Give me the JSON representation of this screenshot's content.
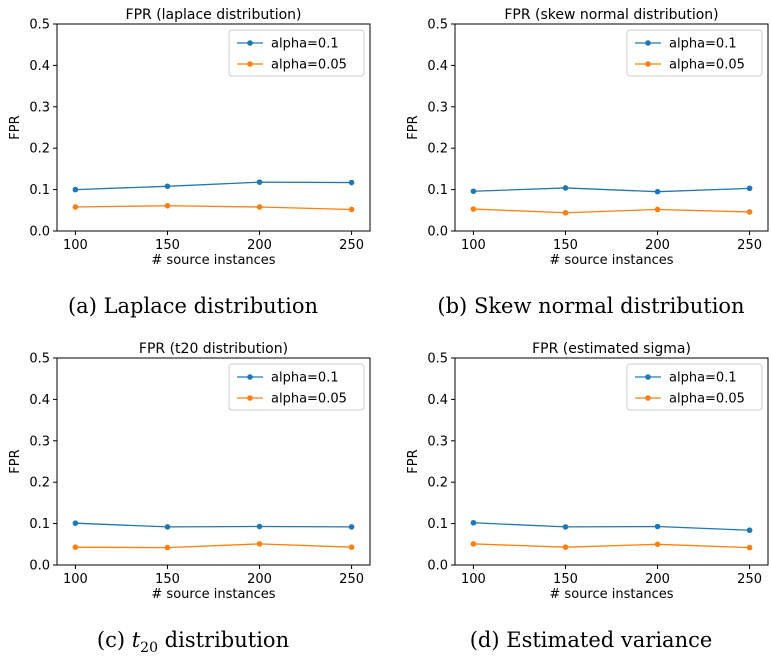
{
  "chart_data": [
    {
      "type": "line",
      "title": "FPR (laplace distribution)",
      "xlabel": "# source instances",
      "ylabel": "FPR",
      "x": [
        100,
        150,
        200,
        250
      ],
      "xticks": [
        100,
        150,
        200,
        250
      ],
      "yticks": [
        0.0,
        0.1,
        0.2,
        0.3,
        0.4,
        0.5
      ],
      "ylim": [
        0.0,
        0.5
      ],
      "legend_position": "top-right",
      "series": [
        {
          "name": "alpha=0.1",
          "color": "#1f77b4",
          "values": [
            0.1,
            0.108,
            0.118,
            0.117
          ]
        },
        {
          "name": "alpha=0.05",
          "color": "#ff7f0e",
          "values": [
            0.058,
            0.061,
            0.058,
            0.052
          ]
        }
      ],
      "caption": {
        "label": "(a)",
        "text": "Laplace distribution"
      }
    },
    {
      "type": "line",
      "title": "FPR (skew normal distribution)",
      "xlabel": "# source instances",
      "ylabel": "FPR",
      "x": [
        100,
        150,
        200,
        250
      ],
      "xticks": [
        100,
        150,
        200,
        250
      ],
      "yticks": [
        0.0,
        0.1,
        0.2,
        0.3,
        0.4,
        0.5
      ],
      "ylim": [
        0.0,
        0.5
      ],
      "legend_position": "top-right",
      "series": [
        {
          "name": "alpha=0.1",
          "color": "#1f77b4",
          "values": [
            0.096,
            0.104,
            0.095,
            0.103
          ]
        },
        {
          "name": "alpha=0.05",
          "color": "#ff7f0e",
          "values": [
            0.053,
            0.044,
            0.052,
            0.046
          ]
        }
      ],
      "caption": {
        "label": "(b)",
        "text": "Skew normal distribution"
      }
    },
    {
      "type": "line",
      "title": "FPR (t20 distribution)",
      "xlabel": "# source instances",
      "ylabel": "FPR",
      "x": [
        100,
        150,
        200,
        250
      ],
      "xticks": [
        100,
        150,
        200,
        250
      ],
      "yticks": [
        0.0,
        0.1,
        0.2,
        0.3,
        0.4,
        0.5
      ],
      "ylim": [
        0.0,
        0.5
      ],
      "legend_position": "top-right",
      "series": [
        {
          "name": "alpha=0.1",
          "color": "#1f77b4",
          "values": [
            0.101,
            0.092,
            0.093,
            0.092
          ]
        },
        {
          "name": "alpha=0.05",
          "color": "#ff7f0e",
          "values": [
            0.043,
            0.042,
            0.051,
            0.043
          ]
        }
      ],
      "caption": {
        "label": "(c)",
        "text": "t",
        "sub": "20",
        "text_after": " distribution"
      }
    },
    {
      "type": "line",
      "title": "FPR (estimated sigma)",
      "xlabel": "# source instances",
      "ylabel": "FPR",
      "x": [
        100,
        150,
        200,
        250
      ],
      "xticks": [
        100,
        150,
        200,
        250
      ],
      "yticks": [
        0.0,
        0.1,
        0.2,
        0.3,
        0.4,
        0.5
      ],
      "ylim": [
        0.0,
        0.5
      ],
      "legend_position": "top-right",
      "series": [
        {
          "name": "alpha=0.1",
          "color": "#1f77b4",
          "values": [
            0.102,
            0.092,
            0.093,
            0.084
          ]
        },
        {
          "name": "alpha=0.05",
          "color": "#ff7f0e",
          "values": [
            0.051,
            0.043,
            0.05,
            0.042
          ]
        }
      ],
      "caption": {
        "label": "(d)",
        "text": "Estimated variance"
      }
    }
  ]
}
